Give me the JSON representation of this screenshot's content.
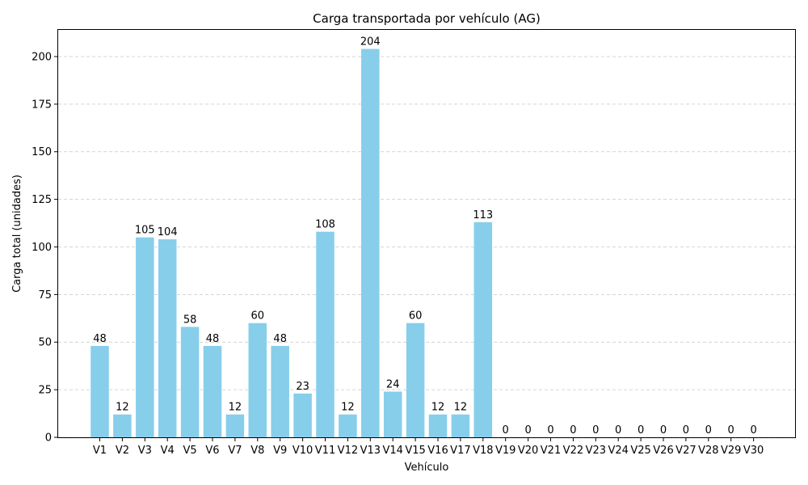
{
  "chart_data": {
    "type": "bar",
    "title": "Carga transportada por vehículo (AG)",
    "xlabel": "Vehículo",
    "ylabel": "Carga total (unidades)",
    "ylim": [
      0,
      214
    ],
    "yticks": [
      0,
      25,
      50,
      75,
      100,
      125,
      150,
      175,
      200
    ],
    "grid": "y-dashed",
    "bar_color": "#87ceeb",
    "categories": [
      "V1",
      "V2",
      "V3",
      "V4",
      "V5",
      "V6",
      "V7",
      "V8",
      "V9",
      "V10",
      "V11",
      "V12",
      "V13",
      "V14",
      "V15",
      "V16",
      "V17",
      "V18",
      "V19",
      "V20",
      "V21",
      "V22",
      "V23",
      "V24",
      "V25",
      "V26",
      "V27",
      "V28",
      "V29",
      "V30"
    ],
    "values": [
      48,
      12,
      105,
      104,
      58,
      48,
      12,
      60,
      48,
      23,
      108,
      12,
      204,
      24,
      60,
      12,
      12,
      113,
      0,
      0,
      0,
      0,
      0,
      0,
      0,
      0,
      0,
      0,
      0,
      0
    ]
  }
}
